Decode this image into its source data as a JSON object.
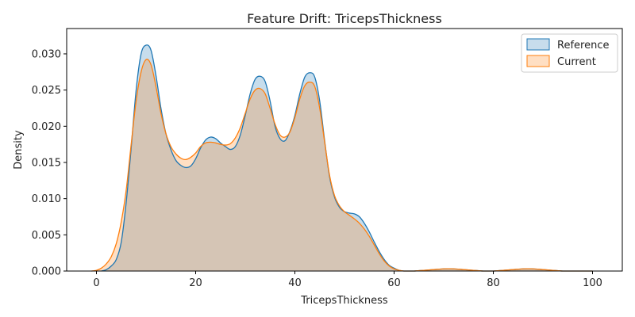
{
  "chart_data": {
    "type": "area",
    "title": "Feature Drift: TricepsThickness",
    "xlabel": "TricepsThickness",
    "ylabel": "Density",
    "xlim": [
      -6,
      106
    ],
    "ylim": [
      0,
      0.0335
    ],
    "x_ticks": [
      0,
      20,
      40,
      60,
      80,
      100
    ],
    "x_tick_labels": [
      "0",
      "20",
      "40",
      "60",
      "80",
      "100"
    ],
    "y_ticks": [
      0,
      0.005,
      0.01,
      0.015,
      0.02,
      0.025,
      0.03
    ],
    "y_tick_labels": [
      "0.000",
      "0.005",
      "0.010",
      "0.015",
      "0.020",
      "0.025",
      "0.030"
    ],
    "grid": false,
    "legend_position": "top-right",
    "series": [
      {
        "name": "Reference",
        "color": "#1f77b4",
        "x": [
          1,
          2,
          3,
          4,
          5,
          6,
          7,
          8,
          9,
          10,
          11,
          12,
          13,
          14,
          15,
          16,
          17,
          18,
          19,
          20,
          21,
          22,
          23,
          24,
          25,
          26,
          27,
          28,
          29,
          30,
          31,
          32,
          33,
          34,
          35,
          36,
          37,
          38,
          39,
          40,
          41,
          42,
          43,
          44,
          45,
          46,
          47,
          48,
          49,
          50,
          51,
          52,
          53,
          54,
          55,
          56,
          57,
          58,
          59,
          60,
          61,
          62,
          63,
          64,
          66,
          68,
          70,
          72,
          74,
          76,
          78,
          80,
          82,
          84,
          86,
          88,
          90,
          92,
          94,
          96,
          98,
          100
        ],
        "y": [
          0.0,
          0.0002,
          0.0007,
          0.0016,
          0.004,
          0.0095,
          0.017,
          0.025,
          0.03,
          0.0312,
          0.0305,
          0.027,
          0.0225,
          0.019,
          0.0168,
          0.0153,
          0.0146,
          0.0143,
          0.0145,
          0.0155,
          0.017,
          0.0181,
          0.0185,
          0.0183,
          0.0177,
          0.0172,
          0.0168,
          0.0172,
          0.0188,
          0.0215,
          0.0245,
          0.0265,
          0.0269,
          0.0262,
          0.0235,
          0.02,
          0.0183,
          0.018,
          0.0193,
          0.0215,
          0.0245,
          0.0268,
          0.0274,
          0.0268,
          0.0235,
          0.018,
          0.013,
          0.0102,
          0.0088,
          0.0082,
          0.008,
          0.0079,
          0.0075,
          0.0066,
          0.0054,
          0.004,
          0.0027,
          0.0016,
          0.0008,
          0.0004,
          0.0001,
          0.0,
          0.0,
          0.0,
          0.0001,
          0.0002,
          0.0003,
          0.0003,
          0.0002,
          0.0001,
          0.0,
          0.0,
          0.0001,
          0.0002,
          0.0003,
          0.0003,
          0.0002,
          0.0001,
          0.0,
          0.0,
          0.0,
          0.0
        ]
      },
      {
        "name": "Current",
        "color": "#ff7f0e",
        "x": [
          -1,
          0,
          1,
          2,
          3,
          4,
          5,
          6,
          7,
          8,
          9,
          10,
          11,
          12,
          13,
          14,
          15,
          16,
          17,
          18,
          19,
          20,
          21,
          22,
          23,
          24,
          25,
          26,
          27,
          28,
          29,
          30,
          31,
          32,
          33,
          34,
          35,
          36,
          37,
          38,
          39,
          40,
          41,
          42,
          43,
          44,
          45,
          46,
          47,
          48,
          49,
          50,
          51,
          52,
          53,
          54,
          55,
          56,
          57,
          58,
          59,
          60,
          61,
          62,
          63,
          64,
          66,
          68,
          70,
          72,
          74,
          76,
          78,
          80,
          82,
          84,
          86,
          88,
          90,
          92,
          94,
          96,
          98,
          100
        ],
        "y": [
          0.0,
          0.0001,
          0.0004,
          0.001,
          0.002,
          0.0038,
          0.0068,
          0.0112,
          0.0175,
          0.0235,
          0.0275,
          0.0292,
          0.0285,
          0.0255,
          0.0218,
          0.019,
          0.0172,
          0.0162,
          0.0156,
          0.0154,
          0.0157,
          0.0163,
          0.0172,
          0.0177,
          0.0178,
          0.0177,
          0.0175,
          0.0174,
          0.0176,
          0.0184,
          0.0198,
          0.0218,
          0.0238,
          0.025,
          0.0252,
          0.0245,
          0.0225,
          0.0203,
          0.0188,
          0.0185,
          0.0192,
          0.0212,
          0.0238,
          0.0256,
          0.0261,
          0.0255,
          0.0225,
          0.0178,
          0.0132,
          0.0104,
          0.009,
          0.0082,
          0.0077,
          0.0072,
          0.0066,
          0.0058,
          0.0048,
          0.0036,
          0.0024,
          0.0014,
          0.0007,
          0.0003,
          0.0001,
          0.0,
          0.0,
          0.0,
          0.0001,
          0.0002,
          0.0003,
          0.0003,
          0.0002,
          0.0001,
          0.0,
          0.0,
          0.0001,
          0.0002,
          0.0003,
          0.0003,
          0.0002,
          0.0001,
          0.0,
          0.0,
          0.0,
          0.0
        ]
      }
    ]
  }
}
